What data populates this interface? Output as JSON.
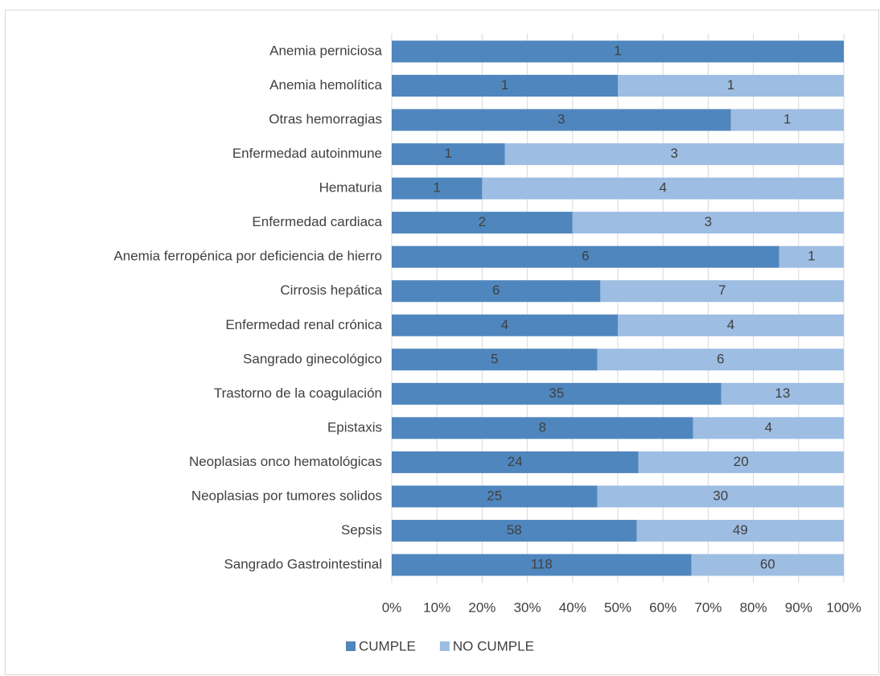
{
  "chart_data": {
    "type": "bar",
    "orientation": "horizontal",
    "stacking": "percent",
    "categories": [
      "Anemia perniciosa",
      "Anemia hemolítica",
      "Otras hemorragias",
      "Enfermedad autoinmune",
      "Hematuria",
      "Enfermedad cardiaca",
      "Anemia ferropénica por deficiencia de hierro",
      "Cirrosis hepática",
      "Enfermedad renal crónica",
      "Sangrado ginecológico",
      "Trastorno de la coagulación",
      "Epistaxis",
      "Neoplasias onco hematológicas",
      "Neoplasias por tumores solidos",
      "Sepsis",
      "Sangrado Gastrointestinal"
    ],
    "series": [
      {
        "name": "CUMPLE",
        "color": "#4f86be",
        "values": [
          1,
          1,
          3,
          1,
          1,
          2,
          6,
          6,
          4,
          5,
          35,
          8,
          24,
          25,
          58,
          118
        ]
      },
      {
        "name": "NO CUMPLE",
        "color": "#9dbde3",
        "values": [
          null,
          1,
          1,
          3,
          4,
          3,
          1,
          7,
          4,
          6,
          13,
          4,
          20,
          30,
          49,
          60
        ]
      }
    ],
    "xlim": [
      0,
      100
    ],
    "xticks": [
      {
        "value": 0,
        "label": "0%"
      },
      {
        "value": 10,
        "label": "10%"
      },
      {
        "value": 20,
        "label": "20%"
      },
      {
        "value": 30,
        "label": "30%"
      },
      {
        "value": 40,
        "label": "40%"
      },
      {
        "value": 50,
        "label": "50%"
      },
      {
        "value": 60,
        "label": "60%"
      },
      {
        "value": 70,
        "label": "70%"
      },
      {
        "value": 80,
        "label": "80%"
      },
      {
        "value": 90,
        "label": "90%"
      },
      {
        "value": 100,
        "label": "100%"
      }
    ],
    "grid": true,
    "legend": "bottom"
  }
}
